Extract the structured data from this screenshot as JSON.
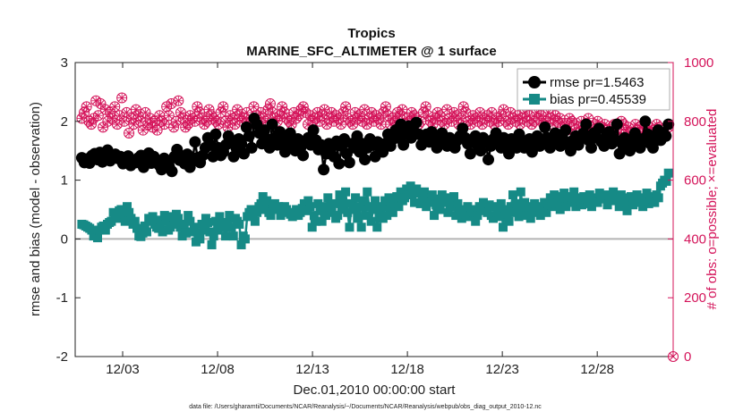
{
  "chart_data": {
    "type": "line",
    "title": "Tropics",
    "subtitle": "MARINE_SFC_ALTIMETER @ 1 surface",
    "xlabel": "Dec.01,2010 00:00:00 start",
    "ylabel": "rmse and bias (model - observation)",
    "y2label": "# of obs: o=possible; ×=evaluated",
    "footer": "data file: /Users/gharamti/Documents/NCAR/Reanalysis/~/Documents/NCAR/Reanalysis/webpub/obs_diag_output_2010-12.nc",
    "xlim": [
      0.5,
      32.0
    ],
    "ylim": [
      -2,
      3
    ],
    "y2lim": [
      0,
      1000
    ],
    "xticks": [
      3,
      8,
      13,
      18,
      23,
      28
    ],
    "xtick_labels": [
      "12/03",
      "12/08",
      "12/13",
      "12/18",
      "12/23",
      "12/28"
    ],
    "yticks": [
      -2,
      -1,
      0,
      1,
      2,
      3
    ],
    "ytick_labels": [
      "-2",
      "-1",
      "0",
      "1",
      "2",
      "3"
    ],
    "y2ticks": [
      0,
      200,
      400,
      600,
      800,
      1000
    ],
    "y2tick_labels": [
      "0",
      "200",
      "400",
      "600",
      "800",
      "1000"
    ],
    "zero_line": 0,
    "legend_position": "top-right",
    "colors": {
      "rmse": "#000000",
      "bias": "#168a86",
      "obs": "#d4145a",
      "zero": "#b4b4b4"
    },
    "series": [
      {
        "name": "rmse pr=1.5463",
        "axis": "left",
        "marker": "circle",
        "values": [
          1.38,
          1.3,
          1.36,
          1.29,
          1.42,
          1.45,
          1.35,
          1.47,
          1.31,
          1.4,
          1.51,
          1.33,
          1.38,
          1.44,
          1.37,
          1.4,
          1.28,
          1.33,
          1.41,
          1.25,
          1.34,
          1.3,
          1.38,
          1.42,
          1.22,
          1.35,
          1.46,
          1.29,
          1.4,
          1.33,
          1.26,
          1.18,
          1.37,
          1.3,
          1.22,
          1.15,
          1.4,
          1.52,
          1.34,
          1.41,
          1.28,
          1.44,
          1.22,
          1.33,
          1.65,
          1.38,
          1.3,
          1.42,
          1.55,
          1.72,
          1.6,
          1.4,
          1.78,
          1.55,
          1.42,
          1.48,
          1.6,
          1.75,
          1.63,
          1.4,
          1.55,
          1.7,
          1.62,
          1.45,
          1.9,
          1.75,
          1.55,
          2.05,
          1.95,
          1.8,
          1.62,
          1.85,
          1.7,
          1.55,
          1.95,
          1.72,
          1.6,
          1.82,
          1.68,
          1.48,
          1.66,
          1.8,
          1.58,
          1.5,
          1.7,
          1.55,
          1.42,
          1.65,
          1.72,
          1.6,
          1.85,
          1.68,
          1.52,
          1.6,
          1.18,
          1.45,
          1.62,
          1.55,
          1.4,
          1.66,
          1.28,
          1.58,
          1.7,
          1.45,
          1.3,
          1.62,
          1.55,
          1.75,
          1.48,
          1.62,
          1.35,
          1.55,
          1.7,
          1.6,
          1.4,
          1.65,
          1.55,
          1.48,
          1.62,
          1.78,
          1.58,
          1.7,
          1.85,
          1.72,
          1.95,
          1.6,
          1.8,
          1.92,
          1.72,
          1.8,
          1.98,
          1.78,
          1.6,
          1.7,
          1.78,
          1.65,
          1.82,
          1.68,
          1.55,
          1.72,
          1.8,
          1.65,
          1.58,
          1.72,
          1.6,
          1.55,
          1.68,
          1.75,
          1.88,
          1.72,
          1.62,
          1.45,
          1.68,
          1.75,
          1.58,
          1.5,
          1.72,
          1.65,
          1.35,
          1.58,
          1.7,
          1.8,
          1.62,
          1.55,
          1.72,
          1.6,
          1.45,
          1.7,
          1.62,
          1.55,
          1.78,
          1.68,
          1.55,
          1.62,
          1.7,
          1.48,
          1.6,
          1.75,
          1.58,
          1.65,
          1.9,
          1.72,
          1.55,
          1.62,
          1.8,
          1.65,
          1.58,
          1.7,
          1.85,
          1.62,
          1.5,
          1.68,
          1.75,
          1.6,
          1.72,
          1.8,
          1.95,
          1.68,
          1.55,
          1.8,
          1.72,
          1.88,
          1.65,
          1.58,
          1.75,
          1.82,
          1.62,
          1.7,
          1.95,
          1.45,
          1.62,
          1.72,
          1.58,
          1.5,
          1.68,
          1.8,
          1.62,
          1.55,
          1.7,
          2.0,
          1.78,
          1.62,
          1.55,
          1.72,
          1.85,
          1.68,
          1.8,
          1.75,
          1.95
        ]
      },
      {
        "name": "bias pr=0.45539",
        "axis": "left",
        "marker": "square",
        "values": [
          0.25,
          0.24,
          0.22,
          0.2,
          0.18,
          0.15,
          0.05,
          0.1,
          0.02,
          0.15,
          0.2,
          0.22,
          0.15,
          0.25,
          0.28,
          0.3,
          0.45,
          0.4,
          0.35,
          0.48,
          0.5,
          0.42,
          0.3,
          0.55,
          0.45,
          0.35,
          0.25,
          0.3,
          0.18,
          0.05,
          0.04,
          0.1,
          0.22,
          0.12,
          0.35,
          0.3,
          0.38,
          0.25,
          0.2,
          0.18,
          0.32,
          0.12,
          0.4,
          0.3,
          0.15,
          0.2,
          0.38,
          0.25,
          0.42,
          0.35,
          0.2,
          0.05,
          0.25,
          0.1,
          0.4,
          0.3,
          0.12,
          0.2,
          -0.05,
          0.1,
          0.0,
          0.25,
          0.15,
          0.35,
          0.28,
          0.12,
          -0.1,
          0.05,
          0.3,
          0.15,
          0.38,
          0.25,
          0.2,
          0.05,
          0.28,
          0.4,
          0.2,
          0.05,
          0.35,
          0.3,
          0.25,
          -0.1,
          0.05,
          0.0,
          0.38,
          0.45,
          0.5,
          0.4,
          0.3,
          0.45,
          0.55,
          0.6,
          0.72,
          0.5,
          0.65,
          0.45,
          0.4,
          0.58,
          0.6,
          0.5,
          0.55,
          0.4,
          0.48,
          0.55,
          0.5,
          0.45,
          0.42,
          0.38,
          0.45,
          0.5,
          0.4,
          0.45,
          0.52,
          0.6,
          0.48,
          0.65,
          0.55,
          0.2,
          0.4,
          0.3,
          0.6,
          0.48,
          0.3,
          0.55,
          0.4,
          0.7,
          0.55,
          0.45,
          0.6,
          0.35,
          0.4,
          0.75,
          0.65,
          0.5,
          0.8,
          0.45,
          0.2,
          0.6,
          0.5,
          0.7,
          0.35,
          0.55,
          0.2,
          0.65,
          0.4,
          0.8,
          0.55,
          0.3,
          0.5,
          0.65,
          0.2,
          0.45,
          0.55,
          0.35,
          0.65,
          0.4,
          0.7,
          0.55,
          0.45,
          0.6,
          0.72,
          0.55,
          0.8,
          0.65,
          0.7,
          0.85,
          0.75,
          0.9,
          0.8,
          0.62,
          0.85,
          0.78,
          0.6,
          0.72,
          0.8,
          0.55,
          0.7,
          0.62,
          0.75,
          0.4,
          0.58,
          0.68,
          0.5,
          0.75,
          0.62,
          0.7,
          0.45,
          0.55,
          0.65,
          0.72,
          0.4,
          0.6,
          0.5,
          0.35,
          0.5,
          0.42,
          0.55,
          0.38,
          0.5,
          0.45,
          0.3,
          0.4,
          0.55,
          0.48,
          0.62,
          0.5,
          0.45,
          0.58,
          0.4,
          0.35,
          0.55,
          0.45,
          0.38,
          0.6,
          0.2,
          0.5,
          0.42,
          0.3,
          0.55,
          0.75,
          0.45,
          0.6,
          0.38,
          0.8,
          0.5,
          0.62,
          0.4,
          0.55,
          0.35,
          0.5,
          0.6,
          0.45,
          0.55,
          0.4,
          0.52,
          0.62,
          0.45,
          0.58,
          0.7,
          0.55,
          0.75,
          0.6,
          0.72,
          0.5,
          0.65,
          0.78,
          0.55,
          0.68,
          0.72,
          0.62,
          0.8,
          0.55,
          0.7,
          0.65,
          0.58,
          0.72,
          0.68,
          0.6,
          0.75,
          0.55,
          0.7,
          0.65,
          0.62,
          0.78,
          0.72,
          0.68,
          0.75,
          0.58,
          0.7,
          0.65,
          0.8,
          0.72,
          0.68,
          0.55,
          0.75,
          0.62,
          0.7,
          0.48,
          0.65,
          0.72,
          0.58,
          0.68,
          0.75,
          0.62,
          0.7,
          0.55,
          0.65,
          0.78,
          0.6,
          0.72,
          0.68,
          0.62,
          0.75,
          0.7,
          0.9,
          0.95,
          1.0,
          0.98,
          1.12
        ]
      },
      {
        "name": "obs possible",
        "axis": "right",
        "marker": "circle-open",
        "values": [
          810,
          830,
          850,
          800,
          790,
          810,
          870,
          820,
          860,
          780,
          840,
          800,
          830,
          810,
          850,
          790,
          820,
          880,
          800,
          830,
          760,
          810,
          790,
          840,
          820,
          800,
          770,
          830,
          790,
          810,
          780,
          800,
          770,
          820,
          800,
          790,
          850,
          820,
          860,
          780,
          800,
          870,
          830,
          810,
          780,
          790,
          820,
          810,
          800,
          850,
          830,
          810,
          790,
          800,
          840,
          820,
          810,
          800,
          790,
          830,
          850,
          800,
          780,
          820,
          810,
          790,
          840,
          820,
          800,
          810,
          830,
          790,
          800,
          850,
          820,
          790,
          830,
          810,
          800,
          840,
          860,
          830,
          810,
          800,
          820,
          850,
          830,
          810,
          800,
          790,
          830,
          810,
          820,
          840,
          850,
          830,
          790,
          820,
          800,
          810,
          830,
          800,
          820,
          840,
          790,
          810,
          830,
          800,
          820,
          810,
          790,
          830,
          850,
          810,
          800,
          790,
          830,
          810,
          820,
          800,
          840,
          790,
          810,
          830,
          800,
          820,
          810,
          790,
          830,
          850,
          820,
          790,
          810,
          800,
          830,
          820,
          840,
          790,
          810,
          800,
          830,
          820,
          810,
          790,
          800,
          830,
          850,
          820,
          800,
          790,
          810,
          830,
          820,
          800,
          790,
          840,
          810,
          800,
          830,
          820,
          790,
          810,
          850,
          830,
          800,
          790,
          820,
          810,
          800,
          830,
          790,
          810,
          820,
          800,
          830,
          790,
          810,
          800,
          820,
          840,
          800,
          790,
          830,
          810,
          800,
          820,
          790,
          810,
          830,
          800,
          820,
          790,
          800,
          830,
          810,
          820,
          790,
          800,
          830,
          810,
          790,
          820,
          800,
          810,
          780,
          790,
          770,
          810,
          800,
          790,
          760,
          780,
          800,
          770,
          790,
          810,
          780,
          760,
          790,
          800,
          770,
          780,
          790,
          770,
          760,
          780,
          790,
          770,
          760,
          800,
          790,
          770,
          780,
          760,
          750,
          790,
          770,
          780,
          760,
          790,
          770,
          780,
          760,
          770,
          790,
          780,
          760,
          770,
          750,
          780
        ]
      }
    ],
    "obs_evaluated_marker": "x",
    "extra_points": [
      {
        "label": "right-axis zero marker",
        "x": 32.0,
        "y2": 0
      }
    ]
  },
  "legend": {
    "rmse": "rmse pr=1.5463",
    "bias": "bias pr=0.45539"
  }
}
